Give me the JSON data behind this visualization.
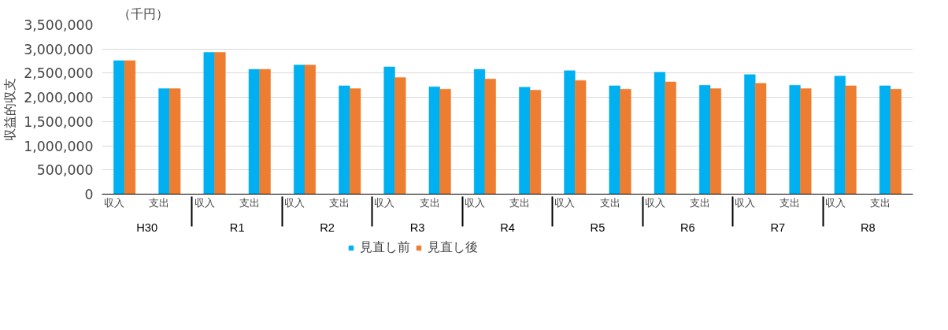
{
  "chart_data": {
    "type": "bar",
    "ylabel": "収益的収支",
    "annotations": [
      "（千円）",
      "H30",
      "R1",
      "R2",
      "R3",
      "R4",
      "R5",
      "R6",
      "R7",
      "R8"
    ],
    "categories": [
      "収入",
      "支出",
      "収入",
      "支出",
      "収入",
      "支出",
      "収入",
      "支出",
      "収入",
      "支出",
      "収入",
      "支出",
      "収入",
      "支出",
      "収入",
      "支出",
      "収入",
      "支出"
    ],
    "series": [
      {
        "name": "見直し前",
        "color": "#00b0f0",
        "values": [
          2760000,
          2180000,
          2930000,
          2580000,
          2670000,
          2240000,
          2630000,
          2220000,
          2580000,
          2210000,
          2550000,
          2240000,
          2520000,
          2250000,
          2470000,
          2250000,
          2440000,
          2240000
        ]
      },
      {
        "name": "見直し後",
        "color": "#ed7d31",
        "values": [
          2760000,
          2180000,
          2930000,
          2580000,
          2670000,
          2180000,
          2410000,
          2170000,
          2380000,
          2150000,
          2350000,
          2170000,
          2320000,
          2180000,
          2290000,
          2180000,
          2240000,
          2170000
        ]
      }
    ],
    "ylim": [
      0,
      3500000
    ],
    "yticks": [
      0,
      {
        "value": 500000,
        "label": "500,000"
      },
      {
        "value": 1000000,
        "label": "1,000,000"
      },
      {
        "value": 1500000,
        "label": "1,500,000"
      },
      {
        "value": 2000000,
        "label": "2,000,000"
      },
      {
        "value": 2500000,
        "label": "2,500,000"
      },
      {
        "value": 3000000,
        "label": "3,000,000"
      },
      {
        "value": 3500000,
        "label": "3,500,000"
      }
    ],
    "grid": "y",
    "legend": "bottom"
  }
}
